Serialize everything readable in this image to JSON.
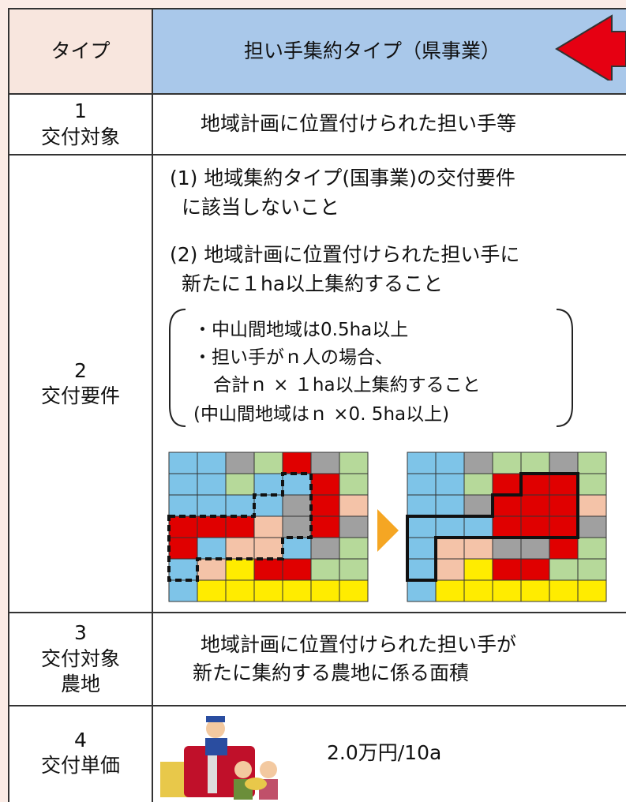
{
  "header": {
    "type_label": "タイプ",
    "title": "担い手集約タイプ（県事業）"
  },
  "rows": [
    {
      "number": "1",
      "label": [
        "交付対象"
      ],
      "content": [
        "地域計画に位置付けられた担い手等"
      ]
    },
    {
      "number": "2",
      "label": [
        "交付要件"
      ],
      "items": [
        [
          "(1) 地域集約タイプ(国事業)の交付要件",
          "に該当しないこと"
        ],
        [
          "(2) 地域計画に位置付けられた担い手に",
          "新たに１ha以上集約すること"
        ]
      ],
      "notes": [
        "・中山間地域は0.5ha以上",
        "・担い手がｎ人の場合、",
        "合計ｎ × １ha以上集約すること",
        "(中山間地域はｎ ×0. 5ha以上)"
      ]
    },
    {
      "number": "3",
      "label": [
        "交付対象",
        "農地"
      ],
      "content": [
        "地域計画に位置付けられた担い手が",
        "新たに集約する農地に係る面積"
      ]
    },
    {
      "number": "4",
      "label": [
        "交付単価"
      ],
      "content": [
        "2.0万円/10a"
      ]
    }
  ]
}
